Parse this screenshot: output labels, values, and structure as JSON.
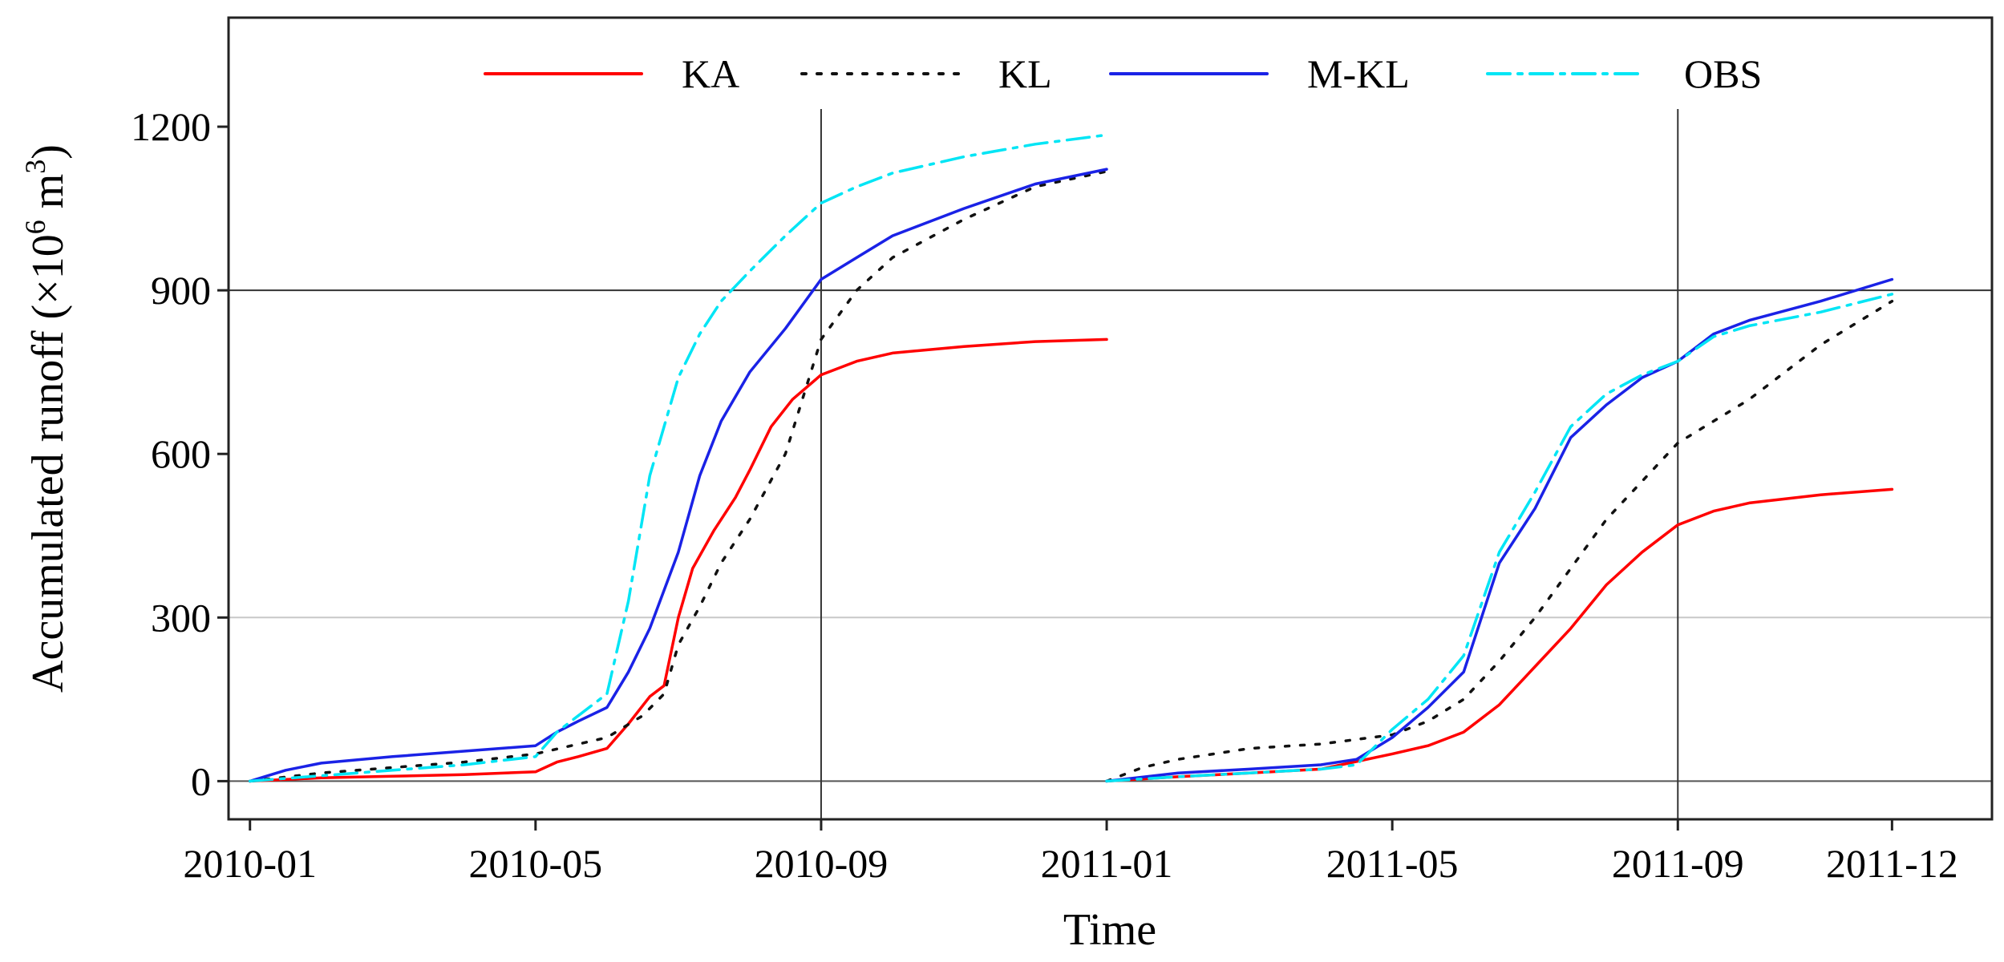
{
  "chart_data": {
    "type": "line",
    "title": "",
    "xlabel": "Time",
    "ylabel_main": "Accumulated runoff (×10",
    "ylabel_exp1": "6",
    "ylabel_mid": "  m",
    "ylabel_exp2": "3",
    "ylabel_end": ")",
    "ylim": [
      -70,
      1400
    ],
    "xlim": [
      -0.3,
      24.4
    ],
    "yticks": [
      0,
      300,
      600,
      900,
      1200
    ],
    "xticks": [
      {
        "pos": 0,
        "label": "2010-01"
      },
      {
        "pos": 4,
        "label": "2010-05"
      },
      {
        "pos": 8,
        "label": "2010-09"
      },
      {
        "pos": 12,
        "label": "2011-01"
      },
      {
        "pos": 16,
        "label": "2011-05"
      },
      {
        "pos": 20,
        "label": "2011-09"
      },
      {
        "pos": 23,
        "label": "2011-12"
      }
    ],
    "hlines": [
      {
        "y": 0,
        "color": "#555555"
      },
      {
        "y": 300,
        "color": "#c8c8c8"
      },
      {
        "y": 900,
        "color": "#333333"
      }
    ],
    "vlines": [
      8,
      20
    ],
    "legend_position": "top",
    "series": [
      {
        "name": "KA",
        "color": "#ff0000",
        "dash": "",
        "points": [
          [
            0,
            0
          ],
          [
            1,
            6
          ],
          [
            2,
            9
          ],
          [
            3,
            12
          ],
          [
            4,
            17
          ],
          [
            4.3,
            35
          ],
          [
            4.6,
            45
          ],
          [
            5,
            60
          ],
          [
            5.3,
            105
          ],
          [
            5.6,
            155
          ],
          [
            5.8,
            175
          ],
          [
            6,
            300
          ],
          [
            6.2,
            390
          ],
          [
            6.5,
            460
          ],
          [
            6.8,
            520
          ],
          [
            7,
            570
          ],
          [
            7.3,
            650
          ],
          [
            7.6,
            700
          ],
          [
            8,
            745
          ],
          [
            8.5,
            770
          ],
          [
            9,
            785
          ],
          [
            10,
            797
          ],
          [
            11,
            806
          ],
          [
            12,
            810
          ]
        ]
      },
      {
        "name": "KL",
        "color": "#111111",
        "dash": "5,14",
        "points": [
          [
            0,
            0
          ],
          [
            1,
            15
          ],
          [
            2,
            25
          ],
          [
            3,
            35
          ],
          [
            4,
            50
          ],
          [
            4.5,
            65
          ],
          [
            5,
            80
          ],
          [
            5.5,
            120
          ],
          [
            5.8,
            160
          ],
          [
            6,
            250
          ],
          [
            6.3,
            320
          ],
          [
            6.6,
            400
          ],
          [
            7,
            480
          ],
          [
            7.5,
            600
          ],
          [
            8,
            810
          ],
          [
            8.5,
            900
          ],
          [
            9,
            960
          ],
          [
            10,
            1030
          ],
          [
            11,
            1090
          ],
          [
            12,
            1118
          ]
        ]
      },
      {
        "name": "M-KL",
        "color": "#1a22e6",
        "dash": "",
        "points": [
          [
            0,
            0
          ],
          [
            0.5,
            20
          ],
          [
            1,
            33
          ],
          [
            2,
            45
          ],
          [
            3,
            55
          ],
          [
            4,
            65
          ],
          [
            4.3,
            90
          ],
          [
            4.6,
            110
          ],
          [
            5,
            135
          ],
          [
            5.3,
            200
          ],
          [
            5.6,
            280
          ],
          [
            6,
            420
          ],
          [
            6.3,
            560
          ],
          [
            6.6,
            660
          ],
          [
            7,
            750
          ],
          [
            7.5,
            830
          ],
          [
            8,
            920
          ],
          [
            8.5,
            960
          ],
          [
            9,
            1000
          ],
          [
            10,
            1050
          ],
          [
            11,
            1095
          ],
          [
            12,
            1122
          ]
        ]
      },
      {
        "name": "OBS",
        "color": "#00e5f5",
        "dash": "28,10,5,10",
        "points": [
          [
            0,
            0
          ],
          [
            1,
            10
          ],
          [
            2,
            20
          ],
          [
            3,
            30
          ],
          [
            4,
            45
          ],
          [
            4.3,
            90
          ],
          [
            4.6,
            120
          ],
          [
            5,
            160
          ],
          [
            5.3,
            330
          ],
          [
            5.6,
            560
          ],
          [
            6,
            740
          ],
          [
            6.3,
            820
          ],
          [
            6.6,
            880
          ],
          [
            7,
            935
          ],
          [
            7.5,
            1000
          ],
          [
            8,
            1060
          ],
          [
            8.5,
            1090
          ],
          [
            9,
            1115
          ],
          [
            10,
            1145
          ],
          [
            11,
            1168
          ],
          [
            12,
            1185
          ]
        ]
      },
      {
        "name": "KA",
        "color": "#ff0000",
        "dash": "",
        "points": [
          [
            12,
            0
          ],
          [
            13,
            8
          ],
          [
            14,
            15
          ],
          [
            15,
            22
          ],
          [
            16,
            50
          ],
          [
            16.5,
            65
          ],
          [
            17,
            90
          ],
          [
            17.5,
            140
          ],
          [
            18,
            210
          ],
          [
            18.5,
            280
          ],
          [
            19,
            360
          ],
          [
            19.5,
            420
          ],
          [
            20,
            470
          ],
          [
            20.5,
            495
          ],
          [
            21,
            510
          ],
          [
            22,
            525
          ],
          [
            23,
            535
          ]
        ]
      },
      {
        "name": "KL",
        "color": "#111111",
        "dash": "5,14",
        "points": [
          [
            12,
            0
          ],
          [
            12.5,
            25
          ],
          [
            13,
            40
          ],
          [
            14,
            60
          ],
          [
            15,
            68
          ],
          [
            16,
            85
          ],
          [
            16.5,
            110
          ],
          [
            17,
            150
          ],
          [
            17.5,
            220
          ],
          [
            18,
            300
          ],
          [
            18.5,
            390
          ],
          [
            19,
            480
          ],
          [
            19.5,
            550
          ],
          [
            20,
            620
          ],
          [
            21,
            700
          ],
          [
            22,
            800
          ],
          [
            23,
            880
          ]
        ]
      },
      {
        "name": "M-KL",
        "color": "#1a22e6",
        "dash": "",
        "points": [
          [
            12,
            0
          ],
          [
            13,
            15
          ],
          [
            14,
            22
          ],
          [
            15,
            30
          ],
          [
            15.5,
            40
          ],
          [
            16,
            80
          ],
          [
            16.5,
            135
          ],
          [
            17,
            200
          ],
          [
            17.5,
            400
          ],
          [
            18,
            500
          ],
          [
            18.5,
            630
          ],
          [
            19,
            690
          ],
          [
            19.5,
            740
          ],
          [
            20,
            770
          ],
          [
            20.5,
            820
          ],
          [
            21,
            845
          ],
          [
            22,
            880
          ],
          [
            23,
            920
          ]
        ]
      },
      {
        "name": "OBS",
        "color": "#00e5f5",
        "dash": "28,10,5,10",
        "points": [
          [
            12,
            0
          ],
          [
            13,
            8
          ],
          [
            14,
            15
          ],
          [
            15,
            22
          ],
          [
            15.5,
            30
          ],
          [
            16,
            95
          ],
          [
            16.5,
            150
          ],
          [
            17,
            230
          ],
          [
            17.5,
            420
          ],
          [
            18,
            530
          ],
          [
            18.5,
            650
          ],
          [
            19,
            710
          ],
          [
            19.5,
            745
          ],
          [
            20,
            770
          ],
          [
            20.5,
            815
          ],
          [
            21,
            835
          ],
          [
            22,
            860
          ],
          [
            23,
            893
          ]
        ]
      }
    ],
    "legend": [
      {
        "name": "KA",
        "color": "#ff0000",
        "dash": ""
      },
      {
        "name": "KL",
        "color": "#111111",
        "dash": "5,14"
      },
      {
        "name": "M-KL",
        "color": "#1a22e6",
        "dash": ""
      },
      {
        "name": "OBS",
        "color": "#00e5f5",
        "dash": "28,10,5,10"
      }
    ]
  }
}
